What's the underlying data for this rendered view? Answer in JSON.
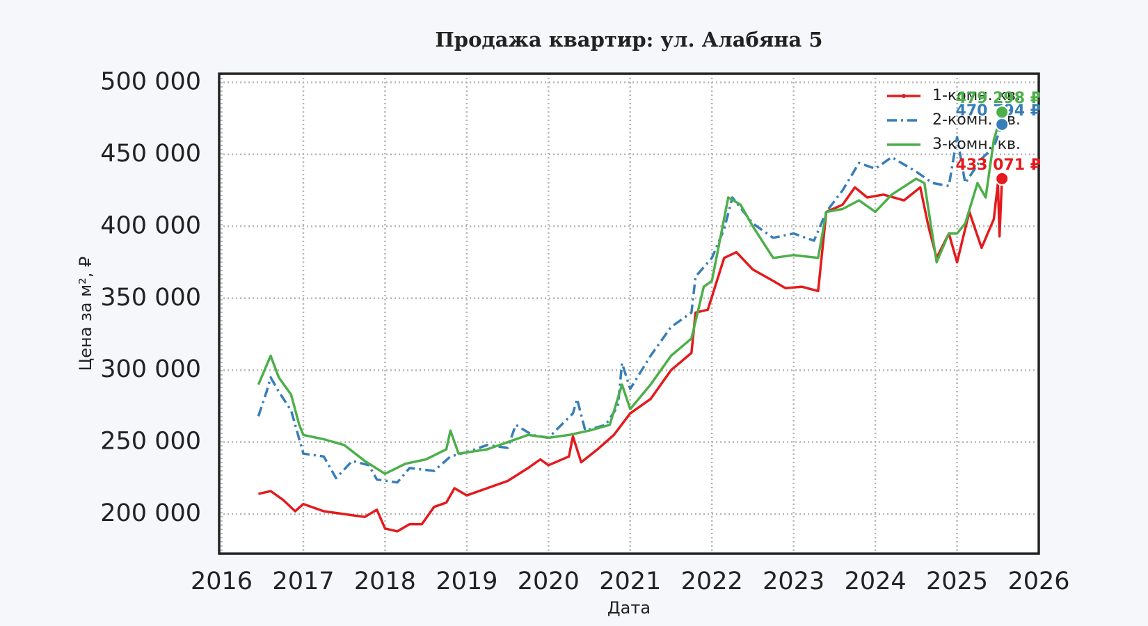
{
  "chart_data": {
    "type": "line",
    "title": "Продажа квартир: ул. Алабяна 5",
    "x_label": "Дата",
    "y_label": "Цена за м², ₽",
    "xlim": [
      2015.97,
      2026
    ],
    "ylim": [
      172500,
      506000
    ],
    "xticks": [
      2016,
      2017,
      2018,
      2019,
      2020,
      2021,
      2022,
      2023,
      2024,
      2025,
      2026
    ],
    "yticks": [
      {
        "value": 200000,
        "label": "200 000"
      },
      {
        "value": 250000,
        "label": "250 000"
      },
      {
        "value": 300000,
        "label": "300 000"
      },
      {
        "value": 350000,
        "label": "350 000"
      },
      {
        "value": 400000,
        "label": "400 000"
      },
      {
        "value": 450000,
        "label": "450 000"
      },
      {
        "value": 500000,
        "label": "500 000"
      }
    ],
    "grid": true,
    "legend": "upper right",
    "series": [
      {
        "name": "1-комн. кв.",
        "color": "#e41a1c",
        "dash": "solid",
        "marker": true,
        "x": [
          2016.45,
          2016.6,
          2016.75,
          2016.9,
          2017.0,
          2017.25,
          2017.5,
          2017.75,
          2017.9,
          2018.0,
          2018.15,
          2018.3,
          2018.45,
          2018.6,
          2018.75,
          2018.85,
          2019.0,
          2019.25,
          2019.5,
          2019.75,
          2019.9,
          2020.0,
          2020.25,
          2020.3,
          2020.4,
          2020.6,
          2020.8,
          2021.0,
          2021.25,
          2021.5,
          2021.75,
          2021.8,
          2021.95,
          2022.15,
          2022.3,
          2022.5,
          2022.75,
          2022.9,
          2023.1,
          2023.3,
          2023.4,
          2023.6,
          2023.75,
          2023.9,
          2024.1,
          2024.35,
          2024.55,
          2024.65,
          2024.75,
          2024.9,
          2025.0,
          2025.15,
          2025.3,
          2025.45,
          2025.5,
          2025.52,
          2025.55
        ],
        "values": [
          214000,
          216000,
          210000,
          202000,
          207000,
          202000,
          200000,
          198000,
          203000,
          190000,
          188000,
          193000,
          193000,
          205000,
          208000,
          218000,
          213000,
          218000,
          223000,
          232000,
          238000,
          234000,
          240000,
          254000,
          236000,
          245000,
          255000,
          270000,
          280000,
          300000,
          312000,
          340000,
          342000,
          378000,
          382000,
          370000,
          362000,
          357000,
          358000,
          355000,
          410000,
          415000,
          427000,
          420000,
          422000,
          418000,
          427000,
          400000,
          378000,
          395000,
          375000,
          410000,
          385000,
          405000,
          430000,
          393000,
          433071
        ]
      },
      {
        "name": "2-комн. кв.",
        "color": "#377eb8",
        "dash": "dashdot",
        "marker": false,
        "x": [
          2016.45,
          2016.55,
          2016.6,
          2016.7,
          2016.85,
          2017.0,
          2017.25,
          2017.4,
          2017.6,
          2017.8,
          2017.9,
          2018.15,
          2018.3,
          2018.6,
          2018.8,
          2019.0,
          2019.25,
          2019.5,
          2019.6,
          2019.8,
          2020.0,
          2020.3,
          2020.35,
          2020.45,
          2020.7,
          2020.85,
          2020.9,
          2021.0,
          2021.25,
          2021.5,
          2021.75,
          2021.8,
          2022.0,
          2022.15,
          2022.25,
          2022.5,
          2022.75,
          2023.0,
          2023.25,
          2023.4,
          2023.6,
          2023.8,
          2024.0,
          2024.2,
          2024.5,
          2024.7,
          2024.9,
          2025.0,
          2025.1,
          2025.3,
          2025.45,
          2025.55
        ],
        "values": [
          268000,
          285000,
          295000,
          285000,
          272000,
          242000,
          240000,
          225000,
          237000,
          234000,
          224000,
          222000,
          232000,
          230000,
          240000,
          243000,
          248000,
          246000,
          262000,
          255000,
          253000,
          270000,
          280000,
          258000,
          262000,
          275000,
          305000,
          287000,
          310000,
          330000,
          340000,
          365000,
          378000,
          398000,
          420000,
          402000,
          392000,
          395000,
          390000,
          410000,
          425000,
          444000,
          440000,
          448000,
          438000,
          430000,
          428000,
          462000,
          430000,
          447000,
          455000,
          470794
        ]
      },
      {
        "name": "3-комн. кв.",
        "color": "#4daf4a",
        "dash": "solid",
        "marker": false,
        "x": [
          2016.45,
          2016.6,
          2016.7,
          2016.85,
          2016.95,
          2017.0,
          2017.25,
          2017.5,
          2017.75,
          2018.0,
          2018.25,
          2018.5,
          2018.75,
          2018.8,
          2018.9,
          2019.25,
          2019.5,
          2019.75,
          2020.0,
          2020.25,
          2020.5,
          2020.75,
          2020.9,
          2021.0,
          2021.25,
          2021.5,
          2021.75,
          2021.9,
          2022.0,
          2022.2,
          2022.35,
          2022.5,
          2022.75,
          2023.0,
          2023.3,
          2023.4,
          2023.6,
          2023.8,
          2024.0,
          2024.2,
          2024.5,
          2024.6,
          2024.75,
          2024.9,
          2025.0,
          2025.1,
          2025.25,
          2025.35,
          2025.45,
          2025.55
        ],
        "values": [
          290000,
          310000,
          295000,
          283000,
          262000,
          255000,
          252000,
          248000,
          237000,
          228000,
          235000,
          238000,
          245000,
          258000,
          242000,
          245000,
          250000,
          255000,
          253000,
          255000,
          258000,
          262000,
          290000,
          273000,
          290000,
          310000,
          322000,
          358000,
          362000,
          420000,
          415000,
          400000,
          378000,
          380000,
          378000,
          410000,
          412000,
          418000,
          410000,
          422000,
          433000,
          430000,
          375000,
          395000,
          395000,
          402000,
          430000,
          420000,
          460000,
          479298
        ]
      }
    ],
    "annotations": [
      {
        "text": "433 071 ₽",
        "x": 2025.55,
        "y": 433071,
        "color": "#e41a1c"
      },
      {
        "text": "470 794 ₽",
        "x": 2025.55,
        "y": 470794,
        "color": "#377eb8"
      },
      {
        "text": "479 298 ₽",
        "x": 2025.55,
        "y": 479298,
        "color": "#4daf4a"
      }
    ]
  }
}
